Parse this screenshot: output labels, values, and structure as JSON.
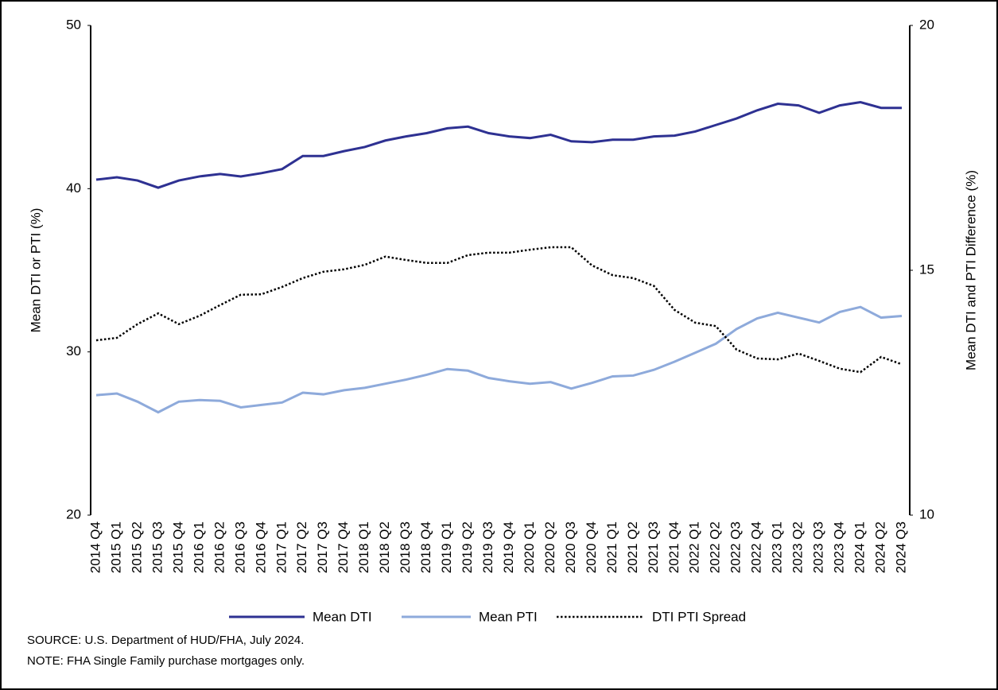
{
  "chart_data": {
    "type": "line",
    "categories": [
      "2014 Q4",
      "2015 Q1",
      "2015 Q2",
      "2015 Q3",
      "2015 Q4",
      "2016 Q1",
      "2016 Q2",
      "2016 Q3",
      "2016 Q4",
      "2017 Q1",
      "2017 Q2",
      "2017 Q3",
      "2017 Q4",
      "2018 Q1",
      "2018 Q2",
      "2018 Q3",
      "2018 Q4",
      "2019 Q1",
      "2019 Q2",
      "2019 Q3",
      "2019 Q4",
      "2020 Q1",
      "2020 Q2",
      "2020 Q3",
      "2020 Q4",
      "2021 Q1",
      "2021 Q2",
      "2021 Q3",
      "2021 Q4",
      "2022 Q1",
      "2022 Q2",
      "2022 Q3",
      "2022 Q4",
      "2023 Q1",
      "2023 Q2",
      "2023 Q3",
      "2023 Q4",
      "2024 Q1",
      "2024 Q2",
      "2024 Q3"
    ],
    "series": [
      {
        "name": "Mean DTI",
        "color": "#2e3192",
        "line_style": "solid",
        "axis": "y",
        "values": [
          40.55,
          40.7,
          40.5,
          40.06,
          40.5,
          40.75,
          40.9,
          40.75,
          40.95,
          41.2,
          42.0,
          42.0,
          42.3,
          42.55,
          42.95,
          43.2,
          43.4,
          43.7,
          43.8,
          43.4,
          43.2,
          43.1,
          43.3,
          42.9,
          42.85,
          43.0,
          43.0,
          43.2,
          43.25,
          43.5,
          43.9,
          44.3,
          44.8,
          45.2,
          45.1,
          44.65,
          45.1,
          45.3,
          44.95,
          44.95
        ]
      },
      {
        "name": "Mean PTI",
        "color": "#8eaadb",
        "line_style": "solid",
        "axis": "y",
        "values": [
          27.35,
          27.45,
          26.95,
          26.3,
          26.95,
          27.05,
          27.0,
          26.6,
          26.75,
          26.9,
          27.5,
          27.4,
          27.65,
          27.8,
          28.05,
          28.3,
          28.6,
          28.95,
          28.85,
          28.4,
          28.2,
          28.05,
          28.15,
          27.75,
          28.1,
          28.5,
          28.55,
          28.9,
          29.4,
          29.95,
          30.5,
          31.4,
          32.05,
          32.4,
          32.1,
          31.8,
          32.45,
          32.75,
          32.1,
          32.2
        ]
      },
      {
        "name": "DTI PTI Spread",
        "color": "#000000",
        "line_style": "dotted",
        "axis": "y2",
        "values": [
          13.57,
          13.62,
          13.9,
          14.12,
          13.9,
          14.07,
          14.29,
          14.5,
          14.51,
          14.66,
          14.84,
          14.97,
          15.02,
          15.11,
          15.28,
          15.21,
          15.15,
          15.15,
          15.31,
          15.36,
          15.36,
          15.42,
          15.47,
          15.47,
          15.1,
          14.9,
          14.84,
          14.68,
          14.19,
          13.93,
          13.86,
          13.38,
          13.2,
          13.18,
          13.3,
          13.15,
          12.99,
          12.92,
          13.23,
          13.08
        ]
      }
    ],
    "ylabel": "Mean DTI or PTI (%)",
    "ylim": [
      20,
      50
    ],
    "yticks": [
      20,
      30,
      40,
      50
    ],
    "y2label": "Mean DTI and PTI Difference (%)",
    "y2lim": [
      10,
      20
    ],
    "y2ticks": [
      10,
      15,
      20
    ],
    "legend": "bottom",
    "notes": [
      "SOURCE: U.S. Department of HUD/FHA, July 2024.",
      "NOTE: FHA Single Family purchase mortgages only."
    ]
  }
}
